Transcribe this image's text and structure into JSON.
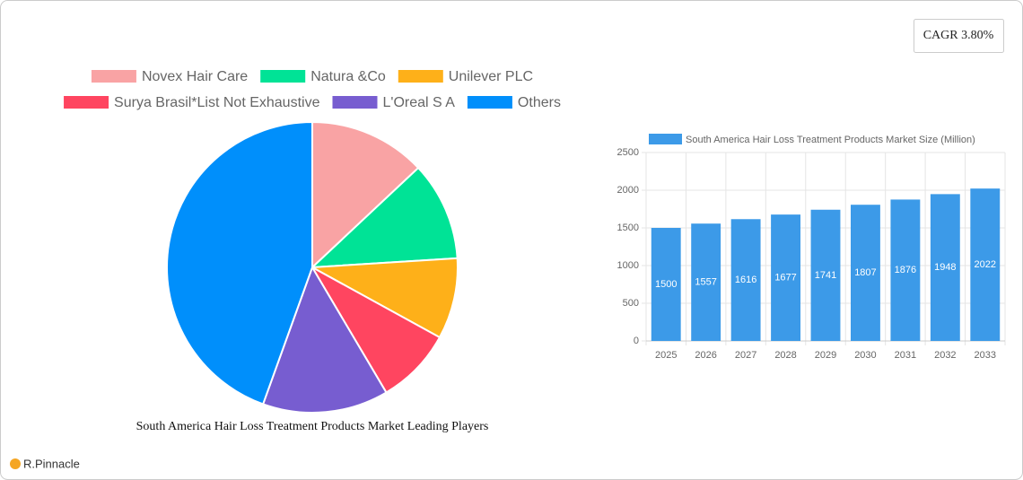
{
  "cagr": "CAGR 3.80%",
  "brand": "R.Pinnacle",
  "chart_data": [
    {
      "type": "pie",
      "title": "South America Hair Loss Treatment Products Market Leading Players",
      "categories": [
        "Novex Hair Care",
        "Natura &Co",
        "Unilever PLC",
        "Surya Brasil*List Not Exhaustive",
        "L'Oreal S A",
        "Others"
      ],
      "values": [
        13,
        11,
        9,
        8.5,
        14,
        44.5
      ],
      "colors": [
        "#f9a3a4",
        "#00e396",
        "#feb019",
        "#ff4560",
        "#775dd0",
        "#008ffb"
      ]
    },
    {
      "type": "bar",
      "categories": [
        "2025",
        "2026",
        "2027",
        "2028",
        "2029",
        "2030",
        "2031",
        "2032",
        "2033"
      ],
      "series": [
        {
          "name": "South America Hair Loss Treatment Products Market Size (Million)",
          "color": "#3c9ae8",
          "values": [
            1500,
            1557,
            1616,
            1677,
            1741,
            1807,
            1876,
            1948,
            2022
          ]
        }
      ],
      "ylim": [
        0,
        2500
      ],
      "yticks": [
        0,
        500,
        1000,
        1500,
        2000,
        2500
      ],
      "grid": true
    }
  ]
}
